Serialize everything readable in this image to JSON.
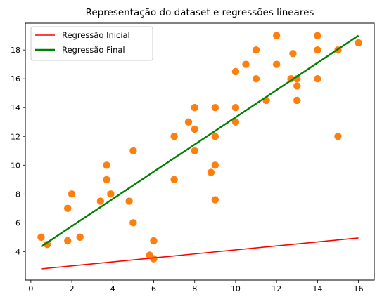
{
  "chart_data": {
    "type": "scatter",
    "title": "Representação do dataset e regressões lineares",
    "xlabel": "",
    "ylabel": "",
    "xlim": [
      -0.27,
      16.77
    ],
    "ylim": [
      2.02,
      19.86
    ],
    "x_ticks": [
      0,
      2,
      4,
      6,
      8,
      10,
      12,
      14,
      16
    ],
    "y_ticks": [
      4,
      6,
      8,
      10,
      12,
      14,
      16,
      18
    ],
    "grid": false,
    "legend_position": "top-left",
    "points_color": "#ff7f0e",
    "points": [
      [
        0.5,
        5.0
      ],
      [
        0.8,
        4.5
      ],
      [
        1.8,
        7.0
      ],
      [
        1.8,
        4.75
      ],
      [
        2.0,
        8.0
      ],
      [
        2.4,
        5.0
      ],
      [
        3.4,
        7.5
      ],
      [
        3.7,
        10.0
      ],
      [
        3.7,
        9.0
      ],
      [
        3.9,
        8.0
      ],
      [
        4.8,
        7.5
      ],
      [
        5.0,
        11.0
      ],
      [
        5.0,
        6.0
      ],
      [
        5.8,
        3.75
      ],
      [
        6.0,
        4.75
      ],
      [
        6.0,
        3.5
      ],
      [
        7.0,
        12.0
      ],
      [
        7.0,
        9.0
      ],
      [
        7.7,
        13.0
      ],
      [
        8.0,
        14.0
      ],
      [
        8.0,
        14.0
      ],
      [
        8.0,
        12.5
      ],
      [
        8.0,
        11.0
      ],
      [
        8.8,
        9.5
      ],
      [
        9.0,
        14.0
      ],
      [
        9.0,
        12.0
      ],
      [
        9.0,
        10.0
      ],
      [
        9.0,
        7.6
      ],
      [
        10.0,
        16.5
      ],
      [
        10.0,
        14.0
      ],
      [
        10.0,
        13.0
      ],
      [
        10.5,
        17.0
      ],
      [
        11.0,
        18.0
      ],
      [
        11.0,
        16.0
      ],
      [
        11.5,
        14.5
      ],
      [
        12.0,
        19.0
      ],
      [
        12.0,
        17.0
      ],
      [
        12.7,
        16.0
      ],
      [
        12.8,
        17.75
      ],
      [
        13.0,
        16.0
      ],
      [
        13.0,
        15.5
      ],
      [
        13.0,
        14.5
      ],
      [
        14.0,
        19.0
      ],
      [
        14.0,
        18.0
      ],
      [
        14.0,
        16.0
      ],
      [
        15.0,
        18.0
      ],
      [
        15.0,
        12.0
      ],
      [
        16.0,
        18.5
      ]
    ],
    "series": [
      {
        "name": "Regressão Inicial",
        "color": "#ff0000",
        "x": [
          0.5,
          16.0
        ],
        "y": [
          2.8,
          4.95
        ]
      },
      {
        "name": "Regressão Final",
        "color": "#008000",
        "x": [
          0.5,
          16.0
        ],
        "y": [
          4.35,
          19.0
        ]
      }
    ]
  }
}
